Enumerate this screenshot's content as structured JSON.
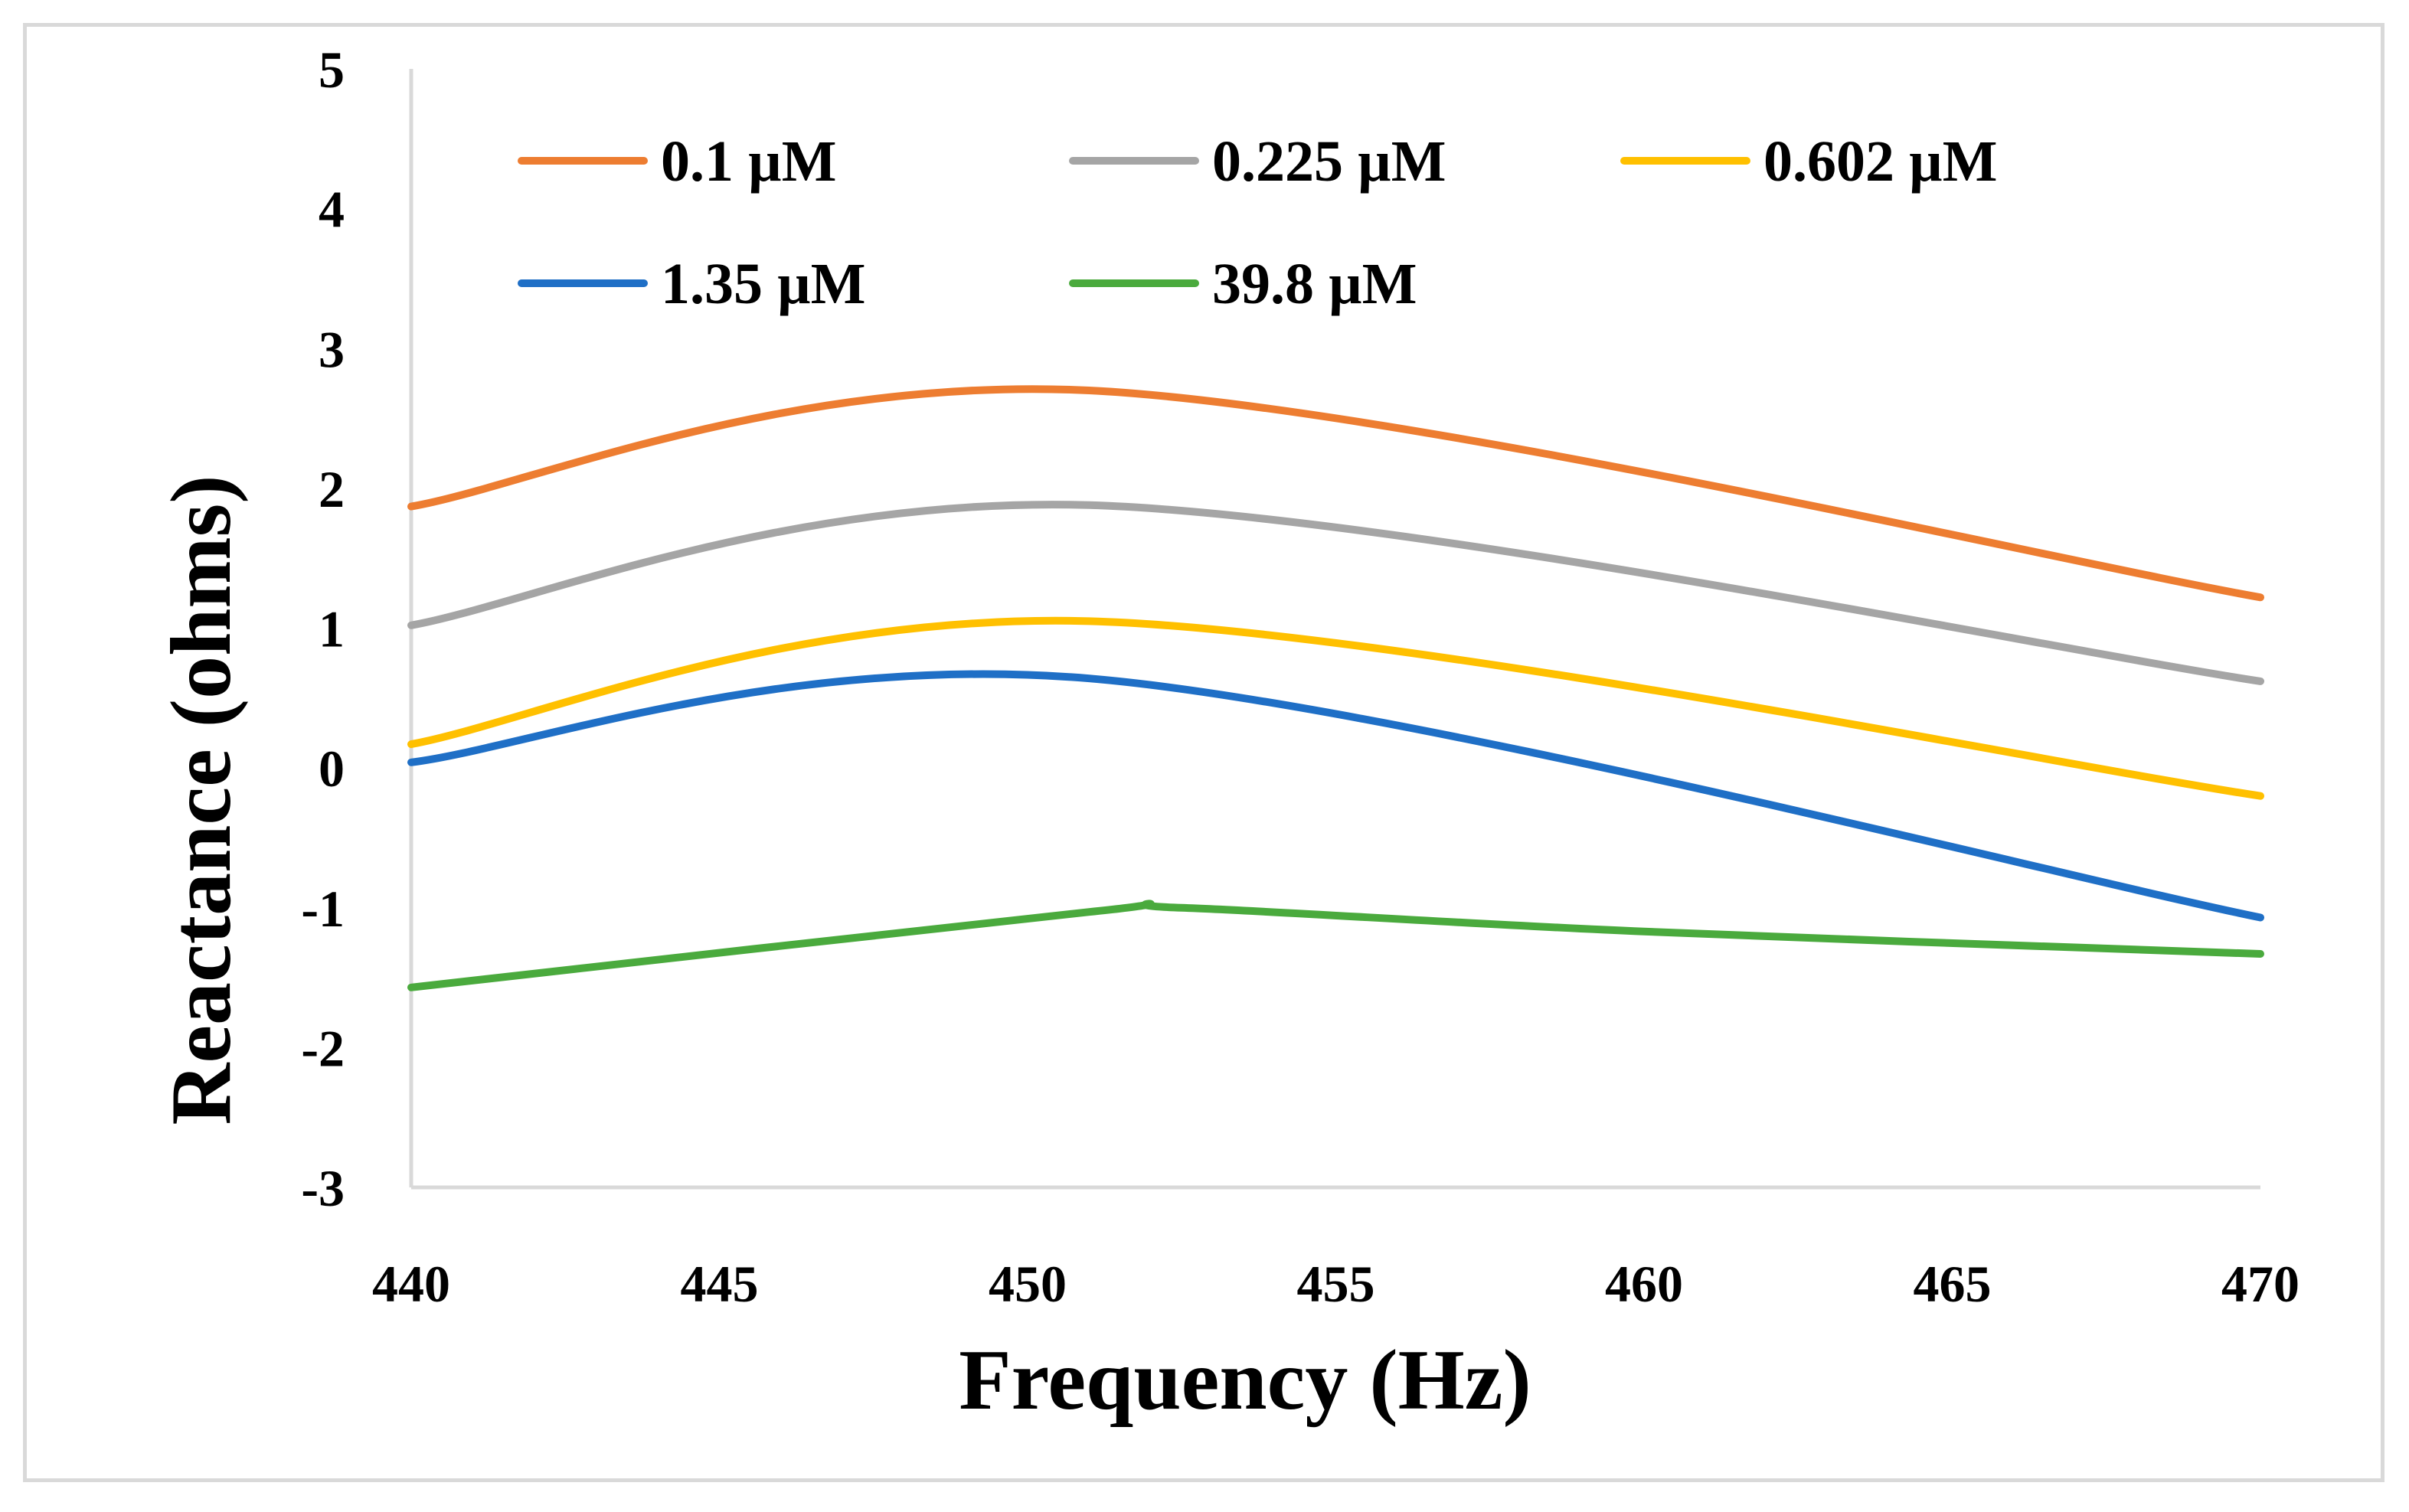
{
  "chart_data": {
    "type": "line",
    "title": "",
    "xlabel": "Frequency (Hz)",
    "ylabel": "Reactance (ohms)",
    "xlim": [
      440,
      470
    ],
    "ylim": [
      -3,
      5
    ],
    "x_ticks": [
      440,
      445,
      450,
      455,
      460,
      465,
      470
    ],
    "y_ticks": [
      -3,
      -2,
      -1,
      0,
      1,
      2,
      3,
      4,
      5
    ],
    "grid": false,
    "legend_position": "top",
    "smooth": true,
    "x": [
      440,
      451,
      470
    ],
    "series": [
      {
        "name": "0.1 µM",
        "color": "#ed7d31",
        "points": [
          [
            440,
            1.87
          ],
          [
            451,
            2.7
          ],
          [
            470,
            1.22
          ]
        ]
      },
      {
        "name": "0.225 µM",
        "color": "#a5a5a5",
        "points": [
          [
            440,
            1.02
          ],
          [
            451,
            1.88
          ],
          [
            470,
            0.62
          ]
        ]
      },
      {
        "name": "0.602 µM",
        "color": "#ffc000",
        "points": [
          [
            440,
            0.17
          ],
          [
            451,
            1.05
          ],
          [
            470,
            -0.2
          ]
        ]
      },
      {
        "name": "1.35 µM",
        "color": "#1f6fc6",
        "points": [
          [
            440,
            0.04
          ],
          [
            451,
            0.64
          ],
          [
            470,
            -1.07
          ]
        ]
      },
      {
        "name": "39.8 µM",
        "color": "#4aaa3d",
        "points": [
          [
            440,
            -1.57
          ],
          [
            451,
            -1.03
          ],
          [
            452.5,
            -1.0
          ],
          [
            460,
            -1.17
          ],
          [
            470,
            -1.33
          ]
        ]
      }
    ]
  }
}
